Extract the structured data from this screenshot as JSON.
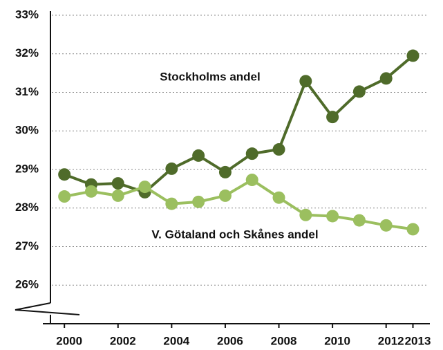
{
  "chart_data": {
    "type": "line",
    "x": [
      2000,
      2001,
      2002,
      2003,
      2004,
      2005,
      2006,
      2007,
      2008,
      2009,
      2010,
      2011,
      2012,
      2013
    ],
    "series": [
      {
        "color": "#4f6b2a",
        "values": [
          28.87,
          28.61,
          28.64,
          28.41,
          29.02,
          29.36,
          28.93,
          29.41,
          29.52,
          31.29,
          30.36,
          31.02,
          31.36,
          31.95
        ]
      },
      {
        "color": "#9bbf5f",
        "values": [
          28.3,
          28.43,
          28.32,
          28.55,
          28.11,
          28.16,
          28.32,
          28.73,
          28.27,
          27.82,
          27.79,
          27.68,
          27.55,
          27.45
        ]
      }
    ],
    "annotations": [
      "Stockholms andel",
      "V. Götaland och Skånes andel"
    ],
    "xlim": [
      1999.48,
      2013.58
    ],
    "xticks": [
      2000,
      2002,
      2004,
      2006,
      2008,
      2010,
      2012,
      2013
    ],
    "ylim": [
      25,
      33
    ],
    "yticks": [
      {
        "value": 26,
        "label": "26%"
      },
      {
        "value": 27,
        "label": "27%"
      },
      {
        "value": 28,
        "label": "28%"
      },
      {
        "value": 29,
        "label": "29%"
      },
      {
        "value": 30,
        "label": "30%"
      },
      {
        "value": 31,
        "label": "31%"
      },
      {
        "value": 32,
        "label": "32%"
      },
      {
        "value": 33,
        "label": "33%"
      }
    ],
    "grid": true
  }
}
